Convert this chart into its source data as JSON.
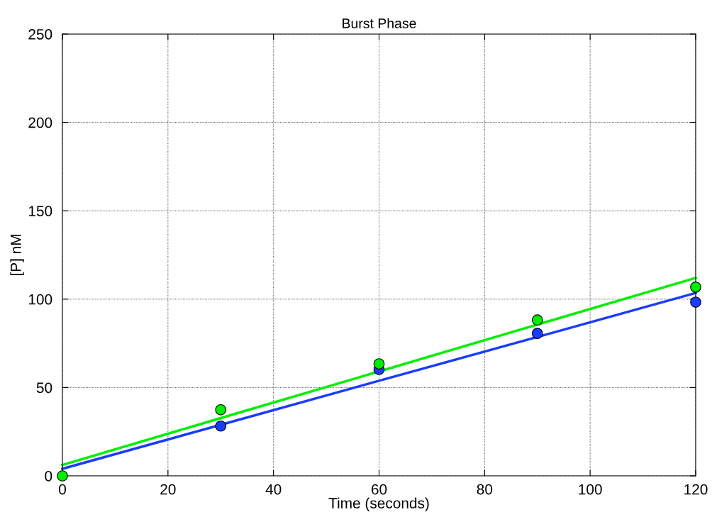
{
  "chart_data": {
    "type": "scatter",
    "title": "Burst Phase",
    "xlabel": "Time (seconds)",
    "ylabel": "[P] nM",
    "x": [
      0,
      30,
      60,
      90,
      120
    ],
    "series": [
      {
        "type": "line",
        "color": "#1a3cff",
        "values": [
          4.0,
          28.9,
          53.8,
          78.6,
          103.5
        ],
        "marker": "none"
      },
      {
        "type": "line",
        "color": "#00ee00",
        "values": [
          6.2,
          32.7,
          59.1,
          85.6,
          112
        ],
        "marker": "none"
      },
      {
        "type": "scatter",
        "color": "#1a3cff",
        "values": [
          null,
          28.2,
          60.2,
          80.6,
          98.3
        ],
        "marker": "circle"
      },
      {
        "type": "scatter",
        "color": "#00ee00",
        "values": [
          0,
          37.4,
          63.4,
          88.2,
          106.8
        ],
        "marker": "circle"
      }
    ],
    "xlim": [
      0,
      120
    ],
    "ylim": [
      0,
      250
    ],
    "xticks": [
      0,
      20,
      40,
      60,
      80,
      100,
      120
    ],
    "yticks": [
      0,
      50,
      100,
      150,
      200,
      250
    ],
    "grid": true,
    "line_style": "solid"
  }
}
